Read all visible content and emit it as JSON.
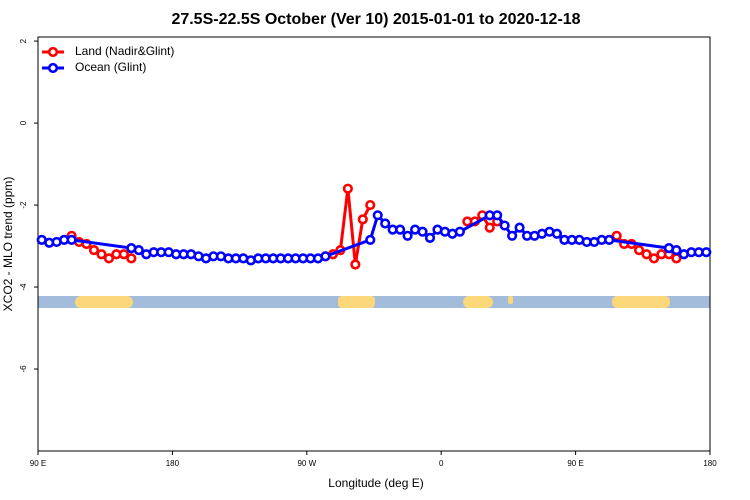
{
  "chart_data": {
    "type": "line",
    "title": "27.5S-22.5S October (Ver 10)   2015-01-01 to 2020-12-18",
    "x_label": "Longitude (deg E)",
    "y_label": "XCO2 - MLO trend (ppm)",
    "xlim": [
      90,
      540
    ],
    "xticks": [
      {
        "value": 90,
        "label": "90 E"
      },
      180,
      {
        "value": 270,
        "label": "90 W"
      },
      {
        "value": 360,
        "label": "0"
      },
      {
        "value": 450,
        "label": "90 E"
      },
      {
        "value": 540,
        "label": "180"
      }
    ],
    "ylim": [
      -8,
      2.1
    ],
    "yticks": [
      2,
      0,
      -2,
      -4,
      -6
    ],
    "legend": "top-left",
    "series": [
      {
        "name": "Land (Nadir&Glint)",
        "color": "#ff0000",
        "x": [
          112.5,
          117.5,
          122.5,
          127.5,
          132.5,
          137.5,
          142.5,
          147.5,
          152.5,
          null,
          282.5,
          287.5,
          292.5,
          297.5,
          302.5,
          307.5,
          312.5,
          null,
          377.5,
          382.5,
          387.5,
          392.5,
          397.5,
          null,
          477.5,
          482.5,
          487.5,
          492.5,
          497.5,
          502.5,
          507.5,
          512.5,
          517.5
        ],
        "values": [
          -2.75,
          -2.9,
          -2.95,
          -3.1,
          -3.2,
          -3.3,
          -3.2,
          -3.2,
          -3.3,
          null,
          -3.25,
          -3.2,
          -3.1,
          -1.6,
          -3.45,
          -2.35,
          -2.0,
          null,
          -2.4,
          -2.4,
          -2.25,
          -2.55,
          -2.4,
          null,
          -2.75,
          -2.95,
          -2.95,
          -3.1,
          -3.2,
          -3.3,
          -3.2,
          -3.2,
          -3.3
        ]
      },
      {
        "name": "Ocean (Glint)",
        "color": "#0000ff",
        "x": [
          92.5,
          97.5,
          102.5,
          107.5,
          112.5,
          152.5,
          157.5,
          162.5,
          167.5,
          172.5,
          177.5,
          182.5,
          187.5,
          192.5,
          197.5,
          202.5,
          207.5,
          212.5,
          217.5,
          222.5,
          227.5,
          232.5,
          237.5,
          242.5,
          247.5,
          252.5,
          257.5,
          262.5,
          267.5,
          272.5,
          277.5,
          282.5,
          312.5,
          317.5,
          322.5,
          327.5,
          332.5,
          337.5,
          342.5,
          347.5,
          352.5,
          357.5,
          362.5,
          367.5,
          372.5,
          392.5,
          397.5,
          402.5,
          407.5,
          412.5,
          417.5,
          422.5,
          427.5,
          432.5,
          437.5,
          442.5,
          447.5,
          452.5,
          457.5,
          462.5,
          467.5,
          472.5,
          512.5,
          517.5,
          522.5,
          527.5,
          532.5,
          537.5
        ],
        "values": [
          -2.85,
          -2.92,
          -2.9,
          -2.85,
          -2.85,
          -3.05,
          -3.1,
          -3.2,
          -3.15,
          -3.15,
          -3.15,
          -3.2,
          -3.2,
          -3.2,
          -3.25,
          -3.3,
          -3.25,
          -3.25,
          -3.3,
          -3.3,
          -3.3,
          -3.35,
          -3.3,
          -3.3,
          -3.3,
          -3.3,
          -3.3,
          -3.3,
          -3.3,
          -3.3,
          -3.3,
          -3.25,
          -2.85,
          -2.25,
          -2.45,
          -2.6,
          -2.6,
          -2.75,
          -2.6,
          -2.65,
          -2.8,
          -2.6,
          -2.65,
          -2.7,
          -2.65,
          -2.25,
          -2.25,
          -2.5,
          -2.75,
          -2.55,
          -2.75,
          -2.75,
          -2.7,
          -2.65,
          -2.7,
          -2.85,
          -2.85,
          -2.85,
          -2.9,
          -2.9,
          -2.85,
          -2.85,
          -3.05,
          -3.1,
          -3.2,
          -3.15,
          -3.15,
          -3.15
        ]
      }
    ]
  }
}
